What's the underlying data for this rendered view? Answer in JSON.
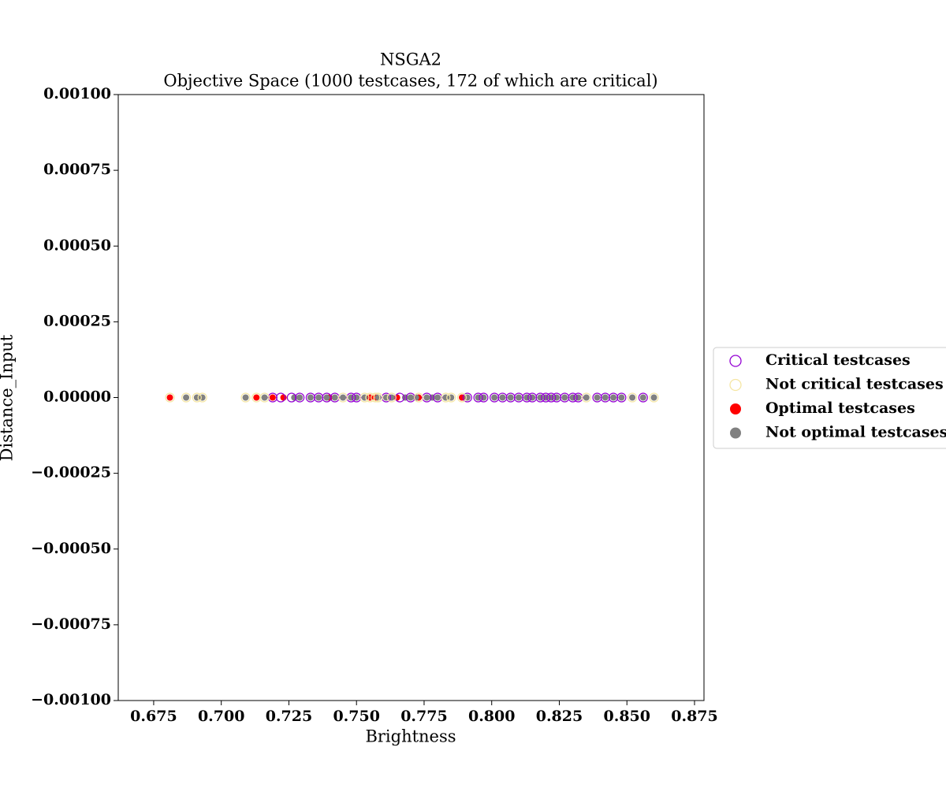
{
  "chart_data": {
    "type": "scatter",
    "title": "NSGA2",
    "subtitle": "Objective Space (1000 testcases, 172 of which are critical)",
    "x_label": "Brightness",
    "y_label": "Distance_Input",
    "xlim": [
      0.6619,
      0.8785
    ],
    "xticks": [
      {
        "value": 0.675,
        "label": "0.675"
      },
      {
        "value": 0.7,
        "label": "0.700"
      },
      {
        "value": 0.725,
        "label": "0.725"
      },
      {
        "value": 0.75,
        "label": "0.750"
      },
      {
        "value": 0.775,
        "label": "0.775"
      },
      {
        "value": 0.8,
        "label": "0.800"
      },
      {
        "value": 0.825,
        "label": "0.825"
      },
      {
        "value": 0.85,
        "label": "0.850"
      },
      {
        "value": 0.875,
        "label": "0.875"
      }
    ],
    "ylim": [
      -0.001,
      0.001
    ],
    "yticks": [
      {
        "value": -0.001,
        "label": "−0.00100"
      },
      {
        "value": -0.00075,
        "label": "−0.00075"
      },
      {
        "value": -0.0005,
        "label": "−0.00050"
      },
      {
        "value": -0.00025,
        "label": "−0.00025"
      },
      {
        "value": 0,
        "label": "0.00000"
      },
      {
        "value": 0.00025,
        "label": "0.00025"
      },
      {
        "value": 0.0005,
        "label": "0.00050"
      },
      {
        "value": 0.00075,
        "label": "0.00075"
      },
      {
        "value": 0.001,
        "label": "0.00100"
      }
    ],
    "legend_position": "right",
    "series": [
      {
        "name": "Optimal testcases",
        "color": "#ff0000",
        "marker": "filled",
        "x": [
          0.681,
          0.713,
          0.719,
          0.723,
          0.74,
          0.755,
          0.757,
          0.765,
          0.773,
          0.789
        ],
        "values": [
          0,
          0,
          0,
          0,
          0,
          0,
          0,
          0,
          0,
          0
        ]
      },
      {
        "name": "Not optimal testcases",
        "color": "#808080",
        "marker": "filled",
        "x": [
          0.687,
          0.691,
          0.693,
          0.709,
          0.716,
          0.727,
          0.729,
          0.733,
          0.736,
          0.739,
          0.742,
          0.745,
          0.748,
          0.75,
          0.753,
          0.758,
          0.761,
          0.763,
          0.768,
          0.77,
          0.772,
          0.776,
          0.778,
          0.78,
          0.783,
          0.785,
          0.791,
          0.795,
          0.797,
          0.801,
          0.804,
          0.807,
          0.81,
          0.813,
          0.815,
          0.818,
          0.82,
          0.822,
          0.824,
          0.827,
          0.83,
          0.832,
          0.835,
          0.839,
          0.842,
          0.845,
          0.848,
          0.852,
          0.856,
          0.86
        ],
        "values": [
          0,
          0,
          0,
          0,
          0,
          0,
          0,
          0,
          0,
          0,
          0,
          0,
          0,
          0,
          0,
          0,
          0,
          0,
          0,
          0,
          0,
          0,
          0,
          0,
          0,
          0,
          0,
          0,
          0,
          0,
          0,
          0,
          0,
          0,
          0,
          0,
          0,
          0,
          0,
          0,
          0,
          0,
          0,
          0,
          0,
          0,
          0,
          0,
          0,
          0
        ]
      },
      {
        "name": "Critical testcases",
        "color": "#9400d3",
        "marker": "hollow",
        "x": [
          0.719,
          0.722,
          0.726,
          0.729,
          0.733,
          0.736,
          0.739,
          0.742,
          0.748,
          0.75,
          0.761,
          0.766,
          0.77,
          0.776,
          0.78,
          0.791,
          0.795,
          0.797,
          0.801,
          0.804,
          0.807,
          0.81,
          0.813,
          0.815,
          0.818,
          0.82,
          0.822,
          0.824,
          0.827,
          0.83,
          0.832,
          0.839,
          0.842,
          0.845,
          0.848,
          0.856
        ],
        "values": [
          0,
          0,
          0,
          0,
          0,
          0,
          0,
          0,
          0,
          0,
          0,
          0,
          0,
          0,
          0,
          0,
          0,
          0,
          0,
          0,
          0,
          0,
          0,
          0,
          0,
          0,
          0,
          0,
          0,
          0,
          0,
          0,
          0,
          0,
          0,
          0
        ]
      },
      {
        "name": "Not critical testcases",
        "color": "#f5e6a3",
        "marker": "hollow",
        "x": [
          0.681,
          0.687,
          0.691,
          0.693,
          0.709,
          0.713,
          0.716,
          0.745,
          0.753,
          0.755,
          0.757,
          0.758,
          0.763,
          0.773,
          0.783,
          0.785,
          0.789,
          0.835,
          0.852,
          0.86
        ],
        "values": [
          0,
          0,
          0,
          0,
          0,
          0,
          0,
          0,
          0,
          0,
          0,
          0,
          0,
          0,
          0,
          0,
          0,
          0,
          0,
          0
        ]
      }
    ],
    "legend_order": [
      2,
      3,
      0,
      1
    ]
  }
}
